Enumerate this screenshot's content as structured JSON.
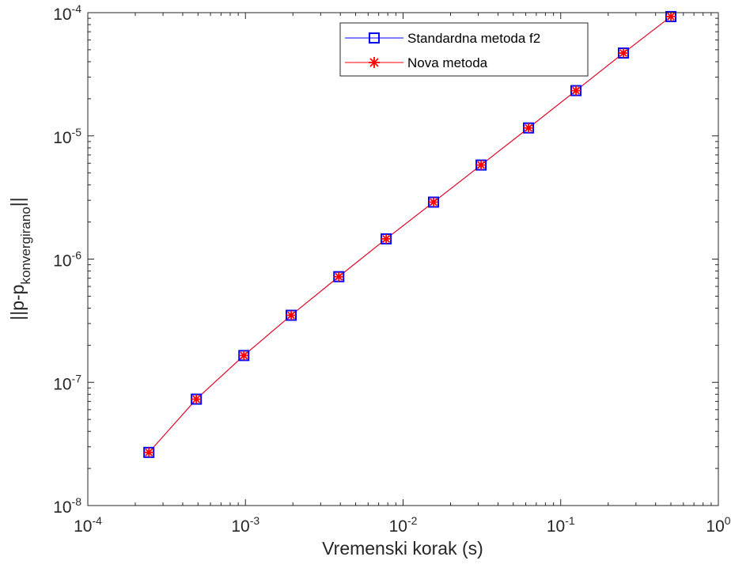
{
  "chart_data": {
    "type": "line",
    "xscale": "log",
    "yscale": "log",
    "xlim": [
      0.0001,
      1
    ],
    "ylim": [
      1e-08,
      0.0001
    ],
    "x_ticks": [
      {
        "base": "10",
        "exp": "-4",
        "value": 0.0001
      },
      {
        "base": "10",
        "exp": "-3",
        "value": 0.001
      },
      {
        "base": "10",
        "exp": "-2",
        "value": 0.01
      },
      {
        "base": "10",
        "exp": "-1",
        "value": 0.1
      },
      {
        "base": "10",
        "exp": "0",
        "value": 1
      }
    ],
    "y_ticks": [
      {
        "base": "10",
        "exp": "-8",
        "value": 1e-08
      },
      {
        "base": "10",
        "exp": "-7",
        "value": 1e-07
      },
      {
        "base": "10",
        "exp": "-6",
        "value": 1e-06
      },
      {
        "base": "10",
        "exp": "-5",
        "value": 1e-05
      },
      {
        "base": "10",
        "exp": "-4",
        "value": 0.0001
      }
    ],
    "xlabel": "Vremenski korak (s)",
    "ylabel_main": "||p-p",
    "ylabel_sub": "konvergirano",
    "ylabel_end": "||",
    "grid": false,
    "legend_position": "top-right",
    "x": [
      0.000244,
      0.000488,
      0.000977,
      0.00195,
      0.00391,
      0.00781,
      0.0156,
      0.03125,
      0.0625,
      0.125,
      0.25,
      0.5
    ],
    "series": [
      {
        "name": "Standardna metoda f2",
        "color": "#0000ff",
        "marker": "square",
        "values": [
          2.7e-08,
          7.3e-08,
          1.65e-07,
          3.5e-07,
          7.2e-07,
          1.46e-06,
          2.9e-06,
          5.8e-06,
          1.16e-05,
          2.33e-05,
          4.7e-05,
          9.3e-05
        ]
      },
      {
        "name": "Nova metoda",
        "color": "#ff0000",
        "marker": "asterisk",
        "values": [
          2.7e-08,
          7.3e-08,
          1.65e-07,
          3.5e-07,
          7.2e-07,
          1.46e-06,
          2.9e-06,
          5.8e-06,
          1.16e-05,
          2.33e-05,
          4.7e-05,
          9.3e-05
        ]
      }
    ]
  }
}
